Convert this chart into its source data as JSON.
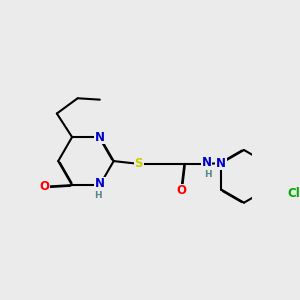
{
  "background_color": "#ebebeb",
  "atom_colors": {
    "N": "#0000cc",
    "O": "#ff0000",
    "S": "#cccc00",
    "Cl": "#00aa00",
    "C": "#000000",
    "H": "#558888"
  },
  "bond_color": "#000000",
  "bond_width": 1.5,
  "figsize": [
    3.0,
    3.0
  ],
  "dpi": 100
}
